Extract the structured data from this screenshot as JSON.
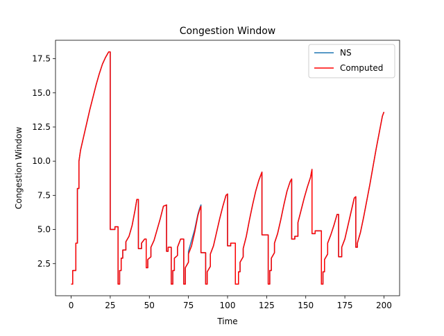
{
  "chart_data": {
    "type": "line",
    "title": "Congestion Window",
    "x_label": "Time",
    "y_label": "Congestion Window",
    "x": [
      0,
      1,
      1,
      3,
      3,
      4,
      4,
      5,
      5,
      6,
      8,
      10,
      12,
      14,
      16,
      18,
      20,
      22,
      24,
      25,
      25,
      28,
      28,
      30,
      30,
      31,
      31,
      32,
      32,
      33,
      33,
      35,
      35,
      37,
      39,
      41,
      42,
      43,
      43,
      45,
      45,
      47,
      48,
      48,
      49,
      49,
      51,
      51,
      53,
      55,
      57,
      59,
      61,
      61,
      62,
      62,
      64,
      64,
      65,
      65,
      66,
      66,
      68,
      68,
      70,
      72,
      72,
      73,
      73,
      75,
      75,
      77,
      79,
      81,
      82,
      83,
      83,
      86,
      86,
      87,
      87,
      89,
      89,
      91,
      93,
      95,
      97,
      99,
      100,
      100,
      102,
      102,
      105,
      105,
      107,
      107,
      108,
      108,
      110,
      110,
      112,
      114,
      116,
      118,
      120,
      122,
      122,
      126,
      126,
      127,
      127,
      128,
      128,
      130,
      130,
      132,
      134,
      136,
      138,
      140,
      141,
      141,
      143,
      143,
      145,
      145,
      147,
      149,
      151,
      153,
      154,
      154,
      156,
      156,
      160,
      160,
      161,
      161,
      162,
      162,
      164,
      164,
      166,
      168,
      170,
      171,
      171,
      173,
      173,
      175,
      177,
      179,
      181,
      182,
      182,
      183,
      183,
      185,
      187,
      189,
      191,
      193,
      195,
      197,
      199,
      200
    ],
    "series": [
      {
        "name": "NS",
        "color": "#1f77b4",
        "values": [
          1,
          1,
          2,
          2,
          4,
          4,
          8,
          8,
          10,
          10.8,
          11.8,
          12.8,
          13.8,
          14.7,
          15.6,
          16.4,
          17.1,
          17.6,
          18,
          18,
          5,
          5,
          5.2,
          5.2,
          1,
          1,
          2,
          2,
          2.9,
          2.9,
          3.5,
          3.5,
          4.1,
          4.5,
          5.3,
          6.5,
          7.2,
          7.2,
          3.6,
          3.6,
          4,
          4.3,
          4.3,
          2.2,
          2.2,
          2.8,
          3,
          3.7,
          4.2,
          5,
          5.8,
          6.7,
          6.8,
          3.4,
          3.4,
          3.7,
          3.7,
          1,
          1,
          2,
          2,
          2.9,
          3.1,
          3.7,
          4.3,
          4.3,
          1,
          1,
          2.2,
          2.6,
          3.4,
          4.2,
          5,
          6.1,
          6.5,
          6.8,
          3.3,
          3.3,
          1,
          1,
          1.9,
          2.3,
          3.2,
          3.8,
          4.8,
          5.8,
          6.7,
          7.5,
          7.6,
          3.8,
          3.8,
          4,
          4,
          1,
          1,
          1.9,
          1.9,
          2.6,
          3,
          3.6,
          4.5,
          5.7,
          6.8,
          7.8,
          8.6,
          9.2,
          4.6,
          4.6,
          1,
          1,
          2,
          2,
          2.9,
          3.3,
          4,
          4.7,
          5.7,
          6.8,
          7.8,
          8.5,
          8.7,
          4.3,
          4.3,
          4.5,
          4.5,
          5.5,
          6.4,
          7.3,
          8.1,
          8.8,
          9.4,
          4.7,
          4.7,
          4.9,
          4.9,
          1,
          1,
          1.9,
          1.9,
          2.8,
          3.2,
          4,
          4.6,
          5.3,
          6.1,
          6.1,
          3,
          3,
          3.7,
          4.3,
          5.3,
          6.3,
          7.3,
          7.4,
          3.7,
          3.7,
          4,
          4.8,
          5.9,
          7.1,
          8.3,
          9.6,
          10.9,
          12.1,
          13.3,
          13.6
        ]
      },
      {
        "name": "Computed",
        "color": "#ff0000",
        "values": [
          1,
          1,
          2,
          2,
          4,
          4,
          8,
          8,
          10,
          10.8,
          11.8,
          12.8,
          13.8,
          14.7,
          15.6,
          16.4,
          17.1,
          17.6,
          18,
          18,
          5,
          5,
          5.2,
          5.2,
          1,
          1,
          2,
          2,
          2.9,
          2.9,
          3.5,
          3.5,
          4.1,
          4.5,
          5.3,
          6.5,
          7.2,
          7.2,
          3.6,
          3.6,
          4,
          4.3,
          4.3,
          2.2,
          2.2,
          2.8,
          3,
          3.7,
          4.2,
          5,
          5.8,
          6.7,
          6.8,
          3.4,
          3.4,
          3.7,
          3.7,
          1,
          1,
          2,
          2,
          2.9,
          3.1,
          3.7,
          4.3,
          4.3,
          1,
          1,
          2.2,
          2.6,
          3.2,
          3.8,
          4.8,
          6,
          6.4,
          6.7,
          3.3,
          3.3,
          1,
          1,
          1.9,
          2.3,
          3.2,
          3.8,
          4.8,
          5.8,
          6.7,
          7.5,
          7.6,
          3.8,
          3.8,
          4,
          4,
          1,
          1,
          1.9,
          1.9,
          2.6,
          3,
          3.6,
          4.5,
          5.7,
          6.8,
          7.8,
          8.6,
          9.2,
          4.6,
          4.6,
          1,
          1,
          2,
          2,
          2.9,
          3.3,
          4,
          4.7,
          5.7,
          6.8,
          7.8,
          8.5,
          8.7,
          4.3,
          4.3,
          4.5,
          4.5,
          5.5,
          6.4,
          7.3,
          8.1,
          8.8,
          9.4,
          4.7,
          4.7,
          4.9,
          4.9,
          1,
          1,
          1.9,
          1.9,
          2.8,
          3.2,
          4,
          4.6,
          5.3,
          6.1,
          6.1,
          3,
          3,
          3.7,
          4.3,
          5.3,
          6.3,
          7.3,
          7.4,
          3.7,
          3.7,
          4,
          4.8,
          5.9,
          7.1,
          8.3,
          9.6,
          10.9,
          12.1,
          13.3,
          13.6
        ]
      }
    ],
    "xlim": [
      -10,
      210
    ],
    "xticks": [
      0,
      25,
      50,
      75,
      100,
      125,
      150,
      175,
      200
    ],
    "ylim": [
      0.15,
      18.85
    ],
    "yticks": [
      2.5,
      {
        "value": 5,
        "label": "5.0"
      },
      7.5,
      {
        "value": 10,
        "label": "10.0"
      },
      12.5,
      {
        "value": 15,
        "label": "15.0"
      },
      17.5
    ],
    "legend": "upper right"
  }
}
